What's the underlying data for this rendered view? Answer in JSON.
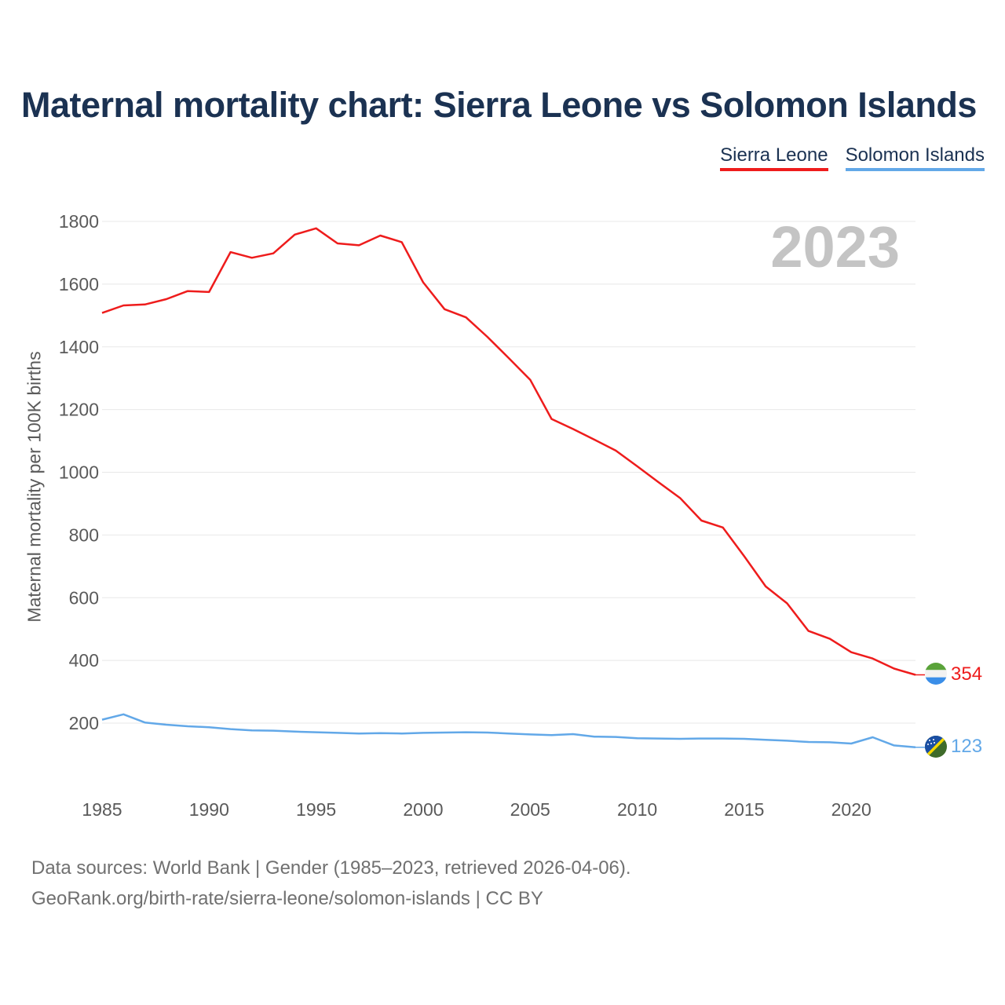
{
  "title": "Maternal mortality chart: Sierra Leone vs Solomon Islands",
  "legend": {
    "sierra_leone": "Sierra Leone",
    "solomon_islands": "Solomon Islands"
  },
  "source": {
    "line1": "Data sources: World Bank | Gender (1985–2023, retrieved 2026-04-06).",
    "line2": "GeoRank.org/birth-rate/sierra-leone/solomon-islands | CC BY"
  },
  "colors": {
    "sierra_leone": "#ee1c1c",
    "solomon_islands": "#62a8e8",
    "title": "#1b3252",
    "grid": "#e8e8e8"
  },
  "chart_data": {
    "type": "line",
    "title": "Maternal mortality chart: Sierra Leone vs Solomon Islands",
    "ylabel": "Maternal mortality per 100K births",
    "xlabel": "",
    "year_label": "2023",
    "x": [
      1985,
      1986,
      1987,
      1988,
      1989,
      1990,
      1991,
      1992,
      1993,
      1994,
      1995,
      1996,
      1997,
      1998,
      1999,
      2000,
      2001,
      2002,
      2003,
      2004,
      2005,
      2006,
      2007,
      2008,
      2009,
      2010,
      2011,
      2012,
      2013,
      2014,
      2015,
      2016,
      2017,
      2018,
      2019,
      2020,
      2021,
      2022,
      2023
    ],
    "xlim": [
      1985,
      2023
    ],
    "ylim": [
      0,
      1850
    ],
    "xticks": [
      1985,
      1990,
      1995,
      2000,
      2005,
      2010,
      2015,
      2020
    ],
    "yticks": [
      200,
      400,
      600,
      800,
      1000,
      1200,
      1400,
      1600,
      1800
    ],
    "grid": true,
    "series": [
      {
        "name": "Sierra Leone",
        "color": "#ee1c1c",
        "end_label": "354",
        "values": [
          1508,
          1532,
          1535,
          1552,
          1578,
          1575,
          1702,
          1684,
          1698,
          1758,
          1778,
          1730,
          1724,
          1755,
          1734,
          1606,
          1520,
          1494,
          1432,
          1364,
          1295,
          1170,
          1138,
          1104,
          1069,
          1019,
          968,
          918,
          846,
          824,
          732,
          636,
          582,
          494,
          469,
          426,
          406,
          374,
          354
        ]
      },
      {
        "name": "Solomon Islands",
        "color": "#62a8e8",
        "end_label": "123",
        "values": [
          211,
          228,
          202,
          195,
          190,
          187,
          181,
          177,
          176,
          173,
          171,
          169,
          167,
          168,
          167,
          169,
          170,
          171,
          170,
          167,
          164,
          162,
          165,
          157,
          156,
          152,
          151,
          150,
          151,
          151,
          150,
          147,
          144,
          140,
          139,
          135,
          155,
          129,
          123
        ]
      }
    ]
  }
}
